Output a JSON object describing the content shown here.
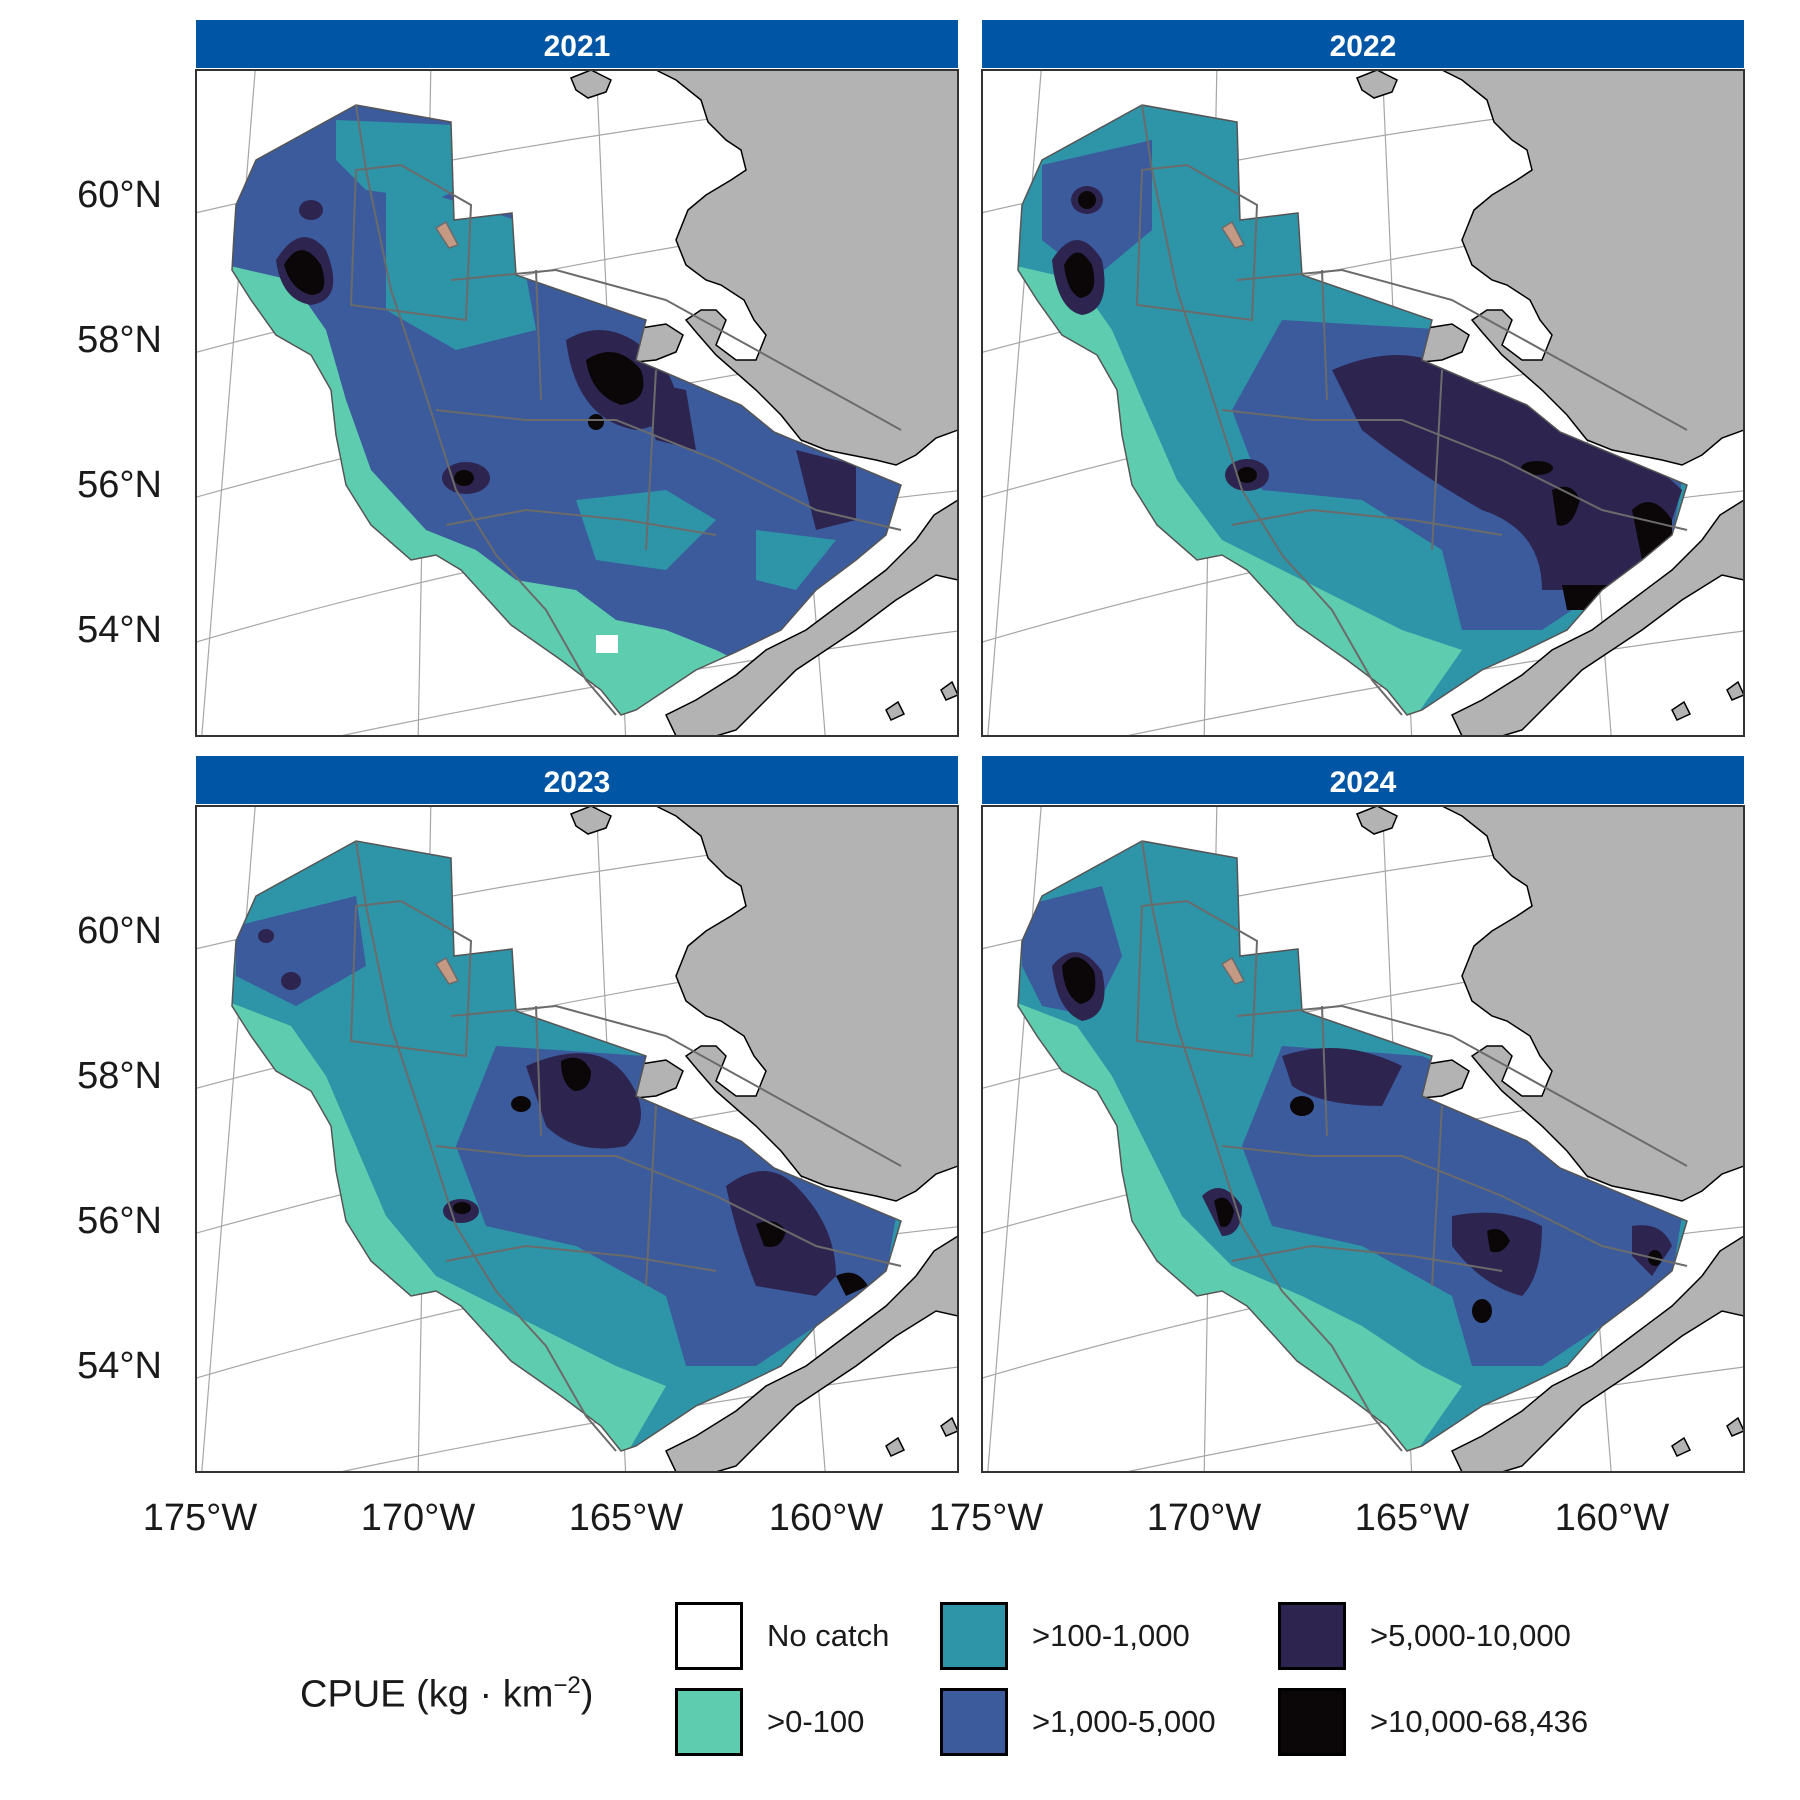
{
  "figure": {
    "panels": [
      {
        "year": "2021"
      },
      {
        "year": "2022"
      },
      {
        "year": "2023"
      },
      {
        "year": "2024"
      }
    ],
    "lat_labels": [
      "60°N",
      "58°N",
      "56°N",
      "54°N"
    ],
    "lon_labels": [
      "175°W",
      "170°W",
      "165°W",
      "160°W"
    ]
  },
  "legend": {
    "title_text": "CPUE (kg · km",
    "title_exponent": "−2",
    "title_close": ")",
    "items": [
      {
        "label": "No catch",
        "color": "#ffffff"
      },
      {
        "label": ">0-100",
        "color": "#5ecdaf"
      },
      {
        "label": ">100-1,000",
        "color": "#2e94a8"
      },
      {
        "label": ">1,000-5,000",
        "color": "#3b5b9d"
      },
      {
        "label": ">5,000-10,000",
        "color": "#2d2550"
      },
      {
        "label": ">10,000-68,436",
        "color": "#0b0709"
      }
    ]
  },
  "colors": {
    "strip": "#0055a4",
    "strip_text": "#ffffff",
    "land": "#b3b3b3",
    "graticule": "#a6a6a6",
    "strata_lines": "#6b6b6b"
  }
}
